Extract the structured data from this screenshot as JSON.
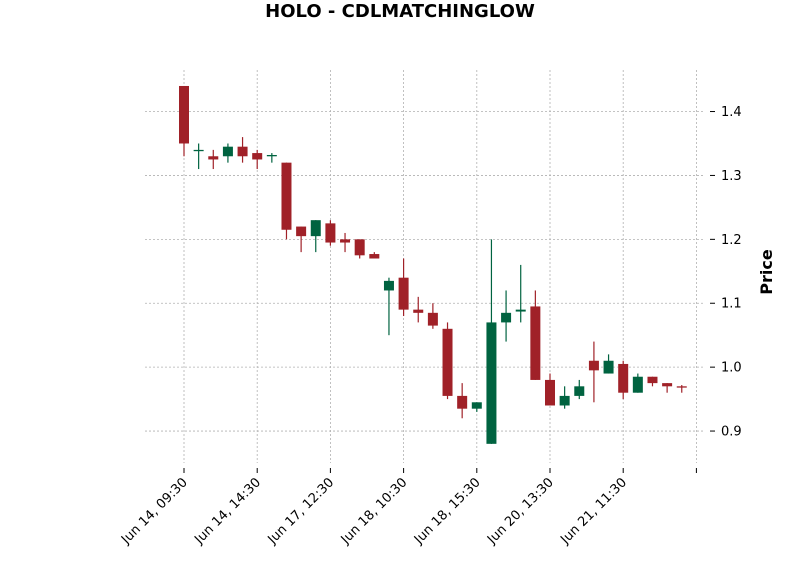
{
  "chart_data": {
    "type": "candlestick",
    "title": "HOLO - CDLMATCHINGLOW",
    "ylabel": "Price",
    "ylim": [
      0.85,
      1.465
    ],
    "yticks": [
      "0.9",
      "1.0",
      "1.1",
      "1.2",
      "1.3",
      "1.4"
    ],
    "xtick_labels": [
      "Jun 14, 09:30",
      "Jun 14, 14:30",
      "Jun 17, 12:30",
      "Jun 18, 10:30",
      "Jun 18, 15:30",
      "Jun 20, 13:30",
      "Jun 21, 11:30"
    ],
    "xtick_indices": [
      0,
      5,
      10,
      15,
      20,
      25,
      30,
      35
    ],
    "grid": true,
    "colors": {
      "up": "#006340",
      "down": "#a02128",
      "grid": "#b0b0b0"
    },
    "candles": [
      {
        "o": 1.44,
        "h": 1.44,
        "l": 1.33,
        "c": 1.35
      },
      {
        "o": 1.34,
        "h": 1.35,
        "l": 1.31,
        "c": 1.34
      },
      {
        "o": 1.33,
        "h": 1.34,
        "l": 1.31,
        "c": 1.325
      },
      {
        "o": 1.33,
        "h": 1.35,
        "l": 1.32,
        "c": 1.345
      },
      {
        "o": 1.345,
        "h": 1.36,
        "l": 1.32,
        "c": 1.33
      },
      {
        "o": 1.335,
        "h": 1.34,
        "l": 1.31,
        "c": 1.325
      },
      {
        "o": 1.33,
        "h": 1.335,
        "l": 1.32,
        "c": 1.332
      },
      {
        "o": 1.32,
        "h": 1.32,
        "l": 1.2,
        "c": 1.215
      },
      {
        "o": 1.22,
        "h": 1.22,
        "l": 1.18,
        "c": 1.205
      },
      {
        "o": 1.205,
        "h": 1.23,
        "l": 1.18,
        "c": 1.23
      },
      {
        "o": 1.225,
        "h": 1.23,
        "l": 1.19,
        "c": 1.195
      },
      {
        "o": 1.2,
        "h": 1.21,
        "l": 1.18,
        "c": 1.195
      },
      {
        "o": 1.2,
        "h": 1.2,
        "l": 1.17,
        "c": 1.175
      },
      {
        "o": 1.177,
        "h": 1.18,
        "l": 1.17,
        "c": 1.17
      },
      {
        "o": 1.12,
        "h": 1.14,
        "l": 1.05,
        "c": 1.135
      },
      {
        "o": 1.14,
        "h": 1.17,
        "l": 1.08,
        "c": 1.09
      },
      {
        "o": 1.09,
        "h": 1.11,
        "l": 1.07,
        "c": 1.085
      },
      {
        "o": 1.085,
        "h": 1.1,
        "l": 1.06,
        "c": 1.065
      },
      {
        "o": 1.06,
        "h": 1.07,
        "l": 0.95,
        "c": 0.955
      },
      {
        "o": 0.955,
        "h": 0.975,
        "l": 0.92,
        "c": 0.935
      },
      {
        "o": 0.935,
        "h": 0.945,
        "l": 0.93,
        "c": 0.945
      },
      {
        "o": 0.88,
        "h": 1.2,
        "l": 0.88,
        "c": 1.07
      },
      {
        "o": 1.07,
        "h": 1.12,
        "l": 1.04,
        "c": 1.085
      },
      {
        "o": 1.087,
        "h": 1.16,
        "l": 1.07,
        "c": 1.09
      },
      {
        "o": 1.095,
        "h": 1.12,
        "l": 0.98,
        "c": 0.98
      },
      {
        "o": 0.98,
        "h": 0.99,
        "l": 0.94,
        "c": 0.94
      },
      {
        "o": 0.94,
        "h": 0.97,
        "l": 0.935,
        "c": 0.955
      },
      {
        "o": 0.955,
        "h": 0.98,
        "l": 0.95,
        "c": 0.97
      },
      {
        "o": 1.01,
        "h": 1.04,
        "l": 0.945,
        "c": 0.995
      },
      {
        "o": 0.99,
        "h": 1.02,
        "l": 0.99,
        "c": 1.01
      },
      {
        "o": 1.005,
        "h": 1.01,
        "l": 0.95,
        "c": 0.96
      },
      {
        "o": 0.96,
        "h": 0.99,
        "l": 0.96,
        "c": 0.985
      },
      {
        "o": 0.985,
        "h": 0.985,
        "l": 0.97,
        "c": 0.975
      },
      {
        "o": 0.975,
        "h": 0.975,
        "l": 0.96,
        "c": 0.97
      },
      {
        "o": 0.97,
        "h": 0.972,
        "l": 0.96,
        "c": 0.968
      }
    ]
  }
}
